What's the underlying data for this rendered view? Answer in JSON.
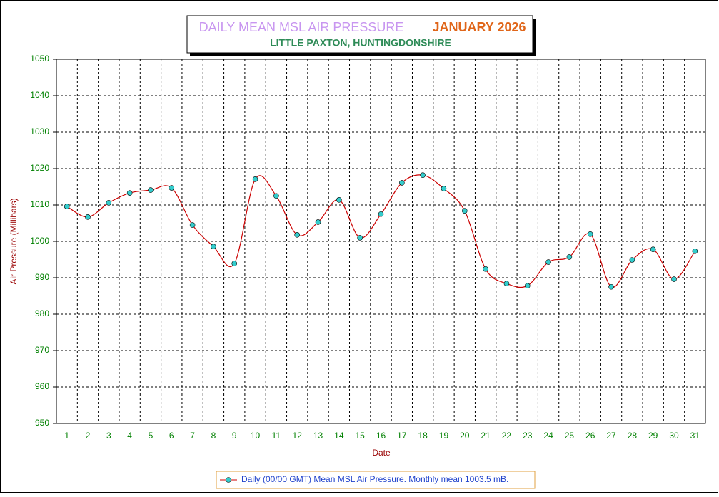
{
  "chart_data": {
    "type": "line",
    "title": "DAILY MEAN MSL AIR PRESSURE",
    "title_period": "JANUARY 2026",
    "subtitle": "LITTLE PAXTON, HUNTINGDONSHIRE",
    "x_label": "Date",
    "y_label": "Air Pressure (Millibars)",
    "categories": [
      "1",
      "2",
      "3",
      "4",
      "5",
      "6",
      "7",
      "8",
      "9",
      "10",
      "11",
      "12",
      "13",
      "14",
      "15",
      "16",
      "17",
      "18",
      "19",
      "20",
      "21",
      "22",
      "23",
      "24",
      "25",
      "26",
      "27",
      "28",
      "29",
      "30",
      "31"
    ],
    "series": [
      {
        "name": "Daily (00/00 GMT) Mean MSL Air Pressure. Monthly mean 1003.5 mB.",
        "color": "#cc0000",
        "marker_color": "#33cccc",
        "values": [
          1009.6,
          1006.7,
          1010.6,
          1013.3,
          1014.1,
          1014.7,
          1004.5,
          998.6,
          993.9,
          1017.1,
          1012.5,
          1001.8,
          1005.3,
          1011.4,
          1001.0,
          1007.5,
          1016.1,
          1018.2,
          1014.5,
          1008.4,
          992.4,
          988.4,
          987.8,
          994.3,
          995.7,
          1002.0,
          987.5,
          994.9,
          997.8,
          989.6,
          997.3
        ]
      }
    ],
    "ylim": [
      950,
      1050
    ],
    "yticks": [
      950,
      960,
      970,
      980,
      990,
      1000,
      1010,
      1020,
      1030,
      1040,
      1050
    ],
    "grid": true,
    "smooth": true,
    "legend": "bottom"
  }
}
